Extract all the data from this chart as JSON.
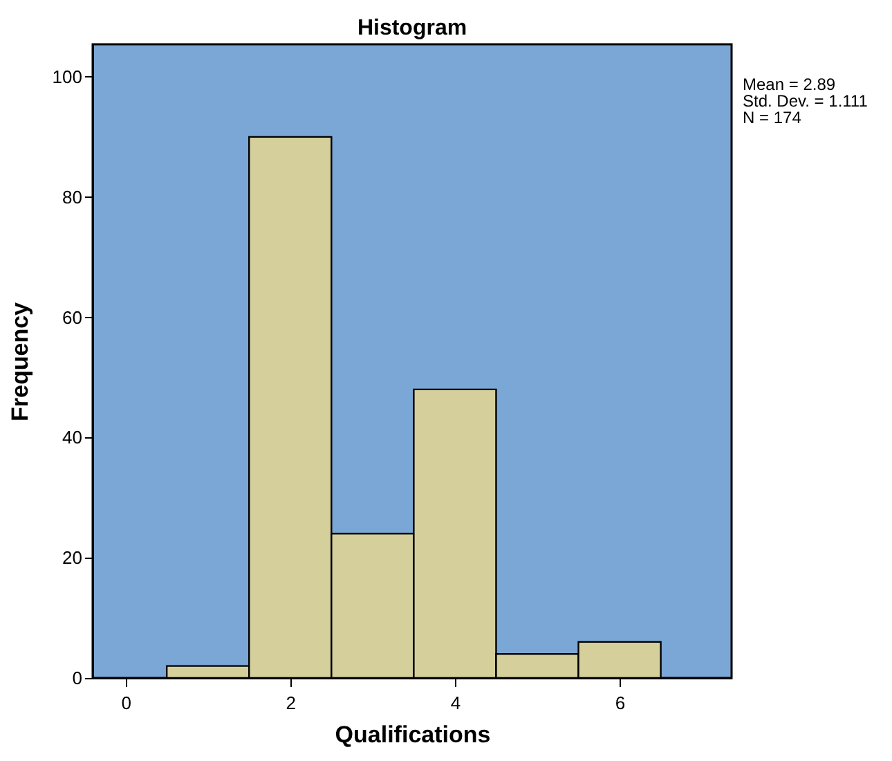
{
  "chart_data": {
    "type": "histogram",
    "title": "Histogram",
    "xlabel": "Qualifications",
    "ylabel": "Frequency",
    "bins": [
      0.5,
      1.5,
      2.5,
      3.5,
      4.5,
      5.5,
      6.5
    ],
    "values": [
      2,
      90,
      24,
      48,
      4,
      6
    ],
    "color": "#d4cf9b",
    "xlim": [
      -0.4,
      7.36
    ],
    "xticks": [
      0,
      2,
      4,
      6
    ],
    "ylim": [
      0,
      105.4
    ],
    "yticks": [
      0,
      20,
      40,
      60,
      80,
      100
    ],
    "annotations": [
      "Mean = 2.89",
      "Std. Dev. = 1.111",
      "N = 174"
    ]
  }
}
